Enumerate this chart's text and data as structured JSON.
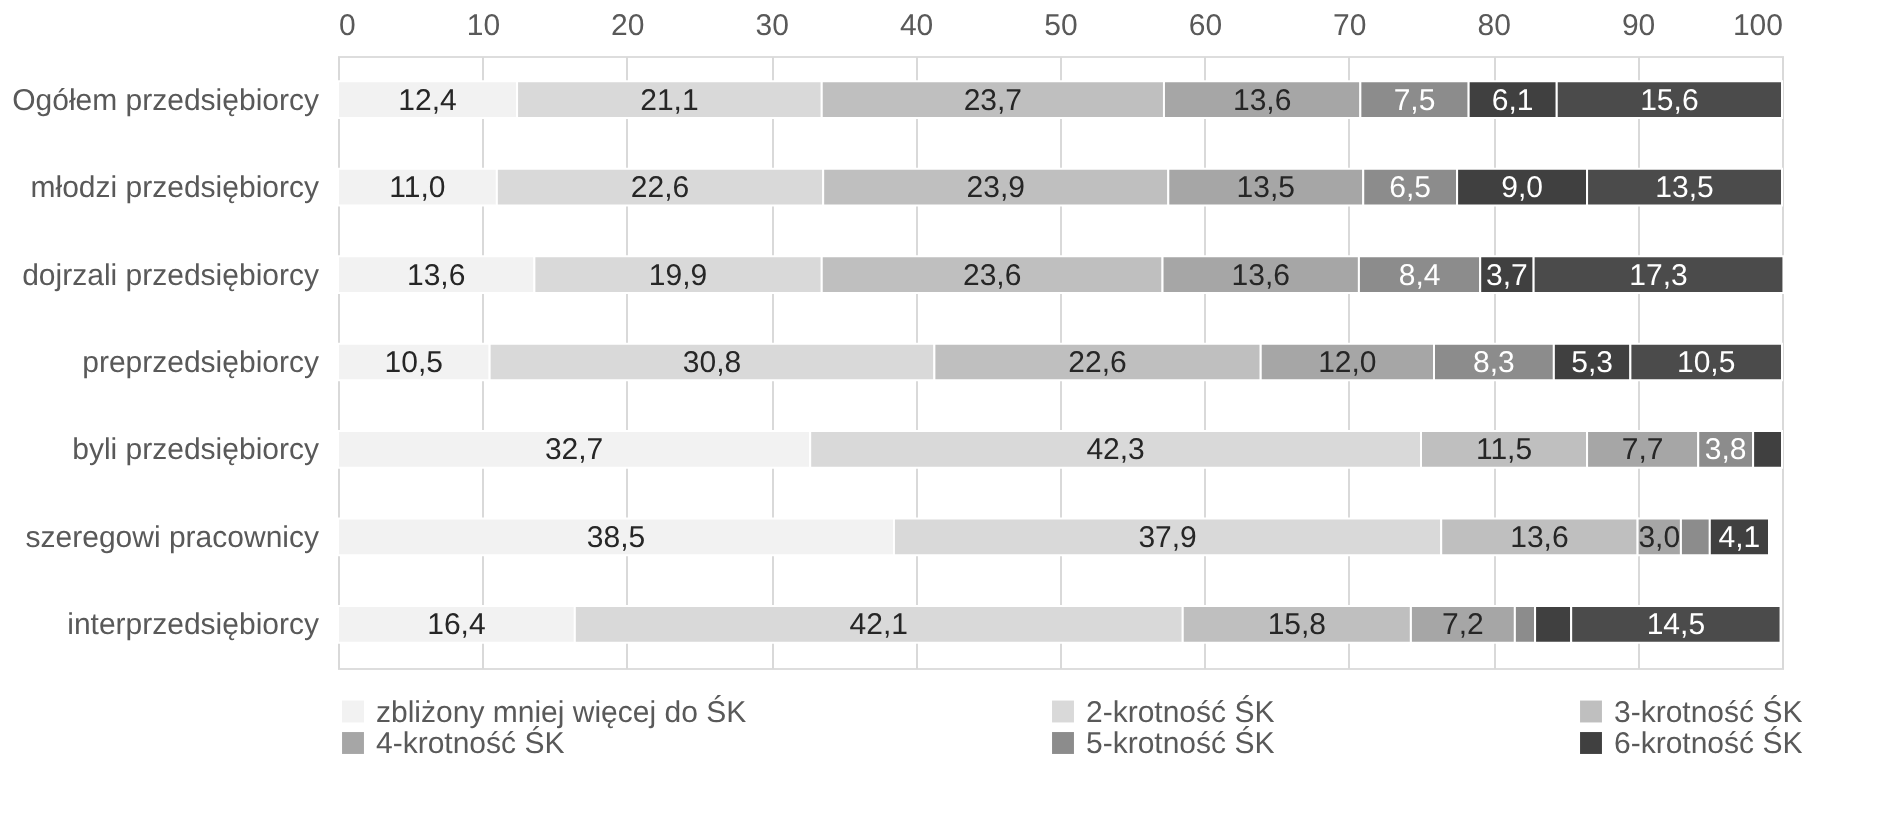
{
  "chart_data": {
    "type": "bar",
    "orientation": "horizontal",
    "stacked": true,
    "categories": [
      "Ogółem przedsiębiorcy",
      "młodzi przedsiębiorcy",
      "dojrzali przedsiębiorcy",
      "preprzedsiębiorcy",
      "byli przedsiębiorcy",
      "szeregowi pracownicy",
      "interprzedsiębiorcy"
    ],
    "series": [
      {
        "name": "zbliżony mniej więcej do ŚK",
        "color": "#f2f2f2",
        "values": [
          12.4,
          11.0,
          13.6,
          10.5,
          32.7,
          38.5,
          16.4
        ],
        "value_labels": [
          "12,4",
          "11,0",
          "13,6",
          "10,5",
          "32,7",
          "38,5",
          "16,4"
        ]
      },
      {
        "name": "2-krotność ŚK",
        "color": "#d9d9d9",
        "values": [
          21.1,
          22.6,
          19.9,
          30.8,
          42.3,
          37.9,
          42.1
        ],
        "value_labels": [
          "21,1",
          "22,6",
          "19,9",
          "30,8",
          "42,3",
          "37,9",
          "42,1"
        ]
      },
      {
        "name": "3-krotność ŚK",
        "color": "#bfbfbf",
        "values": [
          23.7,
          23.9,
          23.6,
          22.6,
          11.5,
          13.6,
          15.8
        ],
        "value_labels": [
          "23,7",
          "23,9",
          "23,6",
          "22,6",
          "11,5",
          "13,6",
          "15,8"
        ]
      },
      {
        "name": "4-krotność ŚK",
        "color": "#a6a6a6",
        "values": [
          13.6,
          13.5,
          13.6,
          12.0,
          7.7,
          3.0,
          7.2
        ],
        "value_labels": [
          "13,6",
          "13,5",
          "13,6",
          "12,0",
          "7,7",
          "3,0",
          "7,2"
        ]
      },
      {
        "name": "5-krotność ŚK",
        "color": "#8c8c8c",
        "values": [
          7.5,
          6.5,
          8.4,
          8.3,
          3.8,
          2.0,
          1.4
        ],
        "value_labels": [
          "7,5",
          "6,5",
          "8,4",
          "8,3",
          "3,8",
          null,
          null
        ]
      },
      {
        "name": "6-krotność ŚK",
        "color": "#404040",
        "values": [
          6.1,
          9.0,
          3.7,
          5.3,
          2.0,
          4.1,
          2.5
        ],
        "value_labels": [
          "6,1",
          "9,0",
          "3,7",
          "5,3",
          null,
          "4,1",
          null
        ]
      },
      {
        "color": "#4b4b4b",
        "values": [
          15.6,
          13.5,
          17.3,
          10.5,
          null,
          null,
          14.5
        ],
        "value_labels": [
          "15,6",
          "13,5",
          "17,3",
          "10,5",
          null,
          null,
          "14,5"
        ]
      }
    ],
    "xlim": [
      0,
      100
    ],
    "xticks": [
      0,
      10,
      20,
      30,
      40,
      50,
      60,
      70,
      80,
      90,
      100
    ],
    "grid": "x",
    "legend": "bottom"
  }
}
